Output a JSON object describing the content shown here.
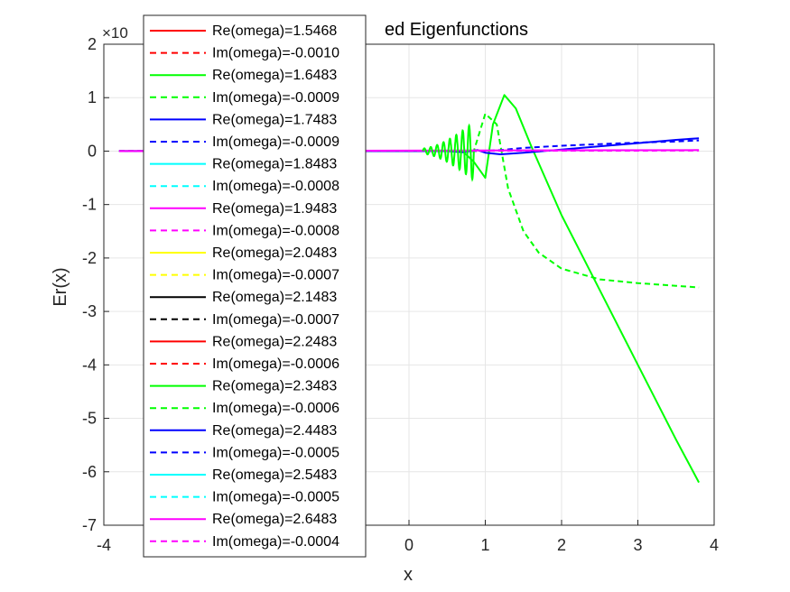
{
  "chart_data": {
    "type": "line",
    "title": "Normalized Eigenfunctions",
    "title_visible_part": "ed Eigenfunctions",
    "xlabel": "x",
    "ylabel": "Er(x)",
    "exponent_label": "×10",
    "xlim": [
      -4,
      4
    ],
    "ylim": [
      -7,
      2
    ],
    "grid": true,
    "legend_position": "top-left",
    "x_ticks": [
      "-4",
      "-3",
      "-2",
      "-1",
      "0",
      "1",
      "2",
      "3",
      "4"
    ],
    "y_ticks": [
      "2",
      "1",
      "0",
      "-1",
      "-2",
      "-3",
      "-4",
      "-5",
      "-6",
      "-7"
    ],
    "legend": [
      {
        "label": "Re(omega)=1.5468",
        "color": "#ff0000",
        "dashed": false
      },
      {
        "label": "Im(omega)=-0.0010",
        "color": "#ff0000",
        "dashed": true
      },
      {
        "label": "Re(omega)=1.6483",
        "color": "#00ff00",
        "dashed": false
      },
      {
        "label": "Im(omega)=-0.0009",
        "color": "#00ff00",
        "dashed": true
      },
      {
        "label": "Re(omega)=1.7483",
        "color": "#0000ff",
        "dashed": false
      },
      {
        "label": "Im(omega)=-0.0009",
        "color": "#0000ff",
        "dashed": true
      },
      {
        "label": "Re(omega)=1.8483",
        "color": "#00ffff",
        "dashed": false
      },
      {
        "label": "Im(omega)=-0.0008",
        "color": "#00ffff",
        "dashed": true
      },
      {
        "label": "Re(omega)=1.9483",
        "color": "#ff00ff",
        "dashed": false
      },
      {
        "label": "Im(omega)=-0.0008",
        "color": "#ff00ff",
        "dashed": true
      },
      {
        "label": "Re(omega)=2.0483",
        "color": "#ffff00",
        "dashed": false
      },
      {
        "label": "Im(omega)=-0.0007",
        "color": "#ffff00",
        "dashed": true
      },
      {
        "label": "Re(omega)=2.1483",
        "color": "#000000",
        "dashed": false
      },
      {
        "label": "Im(omega)=-0.0007",
        "color": "#000000",
        "dashed": true
      },
      {
        "label": "Re(omega)=2.2483",
        "color": "#ff0000",
        "dashed": false
      },
      {
        "label": "Im(omega)=-0.0006",
        "color": "#ff0000",
        "dashed": true
      },
      {
        "label": "Re(omega)=2.3483",
        "color": "#00ff00",
        "dashed": false
      },
      {
        "label": "Im(omega)=-0.0006",
        "color": "#00ff00",
        "dashed": true
      },
      {
        "label": "Re(omega)=2.4483",
        "color": "#0000ff",
        "dashed": false
      },
      {
        "label": "Im(omega)=-0.0005",
        "color": "#0000ff",
        "dashed": true
      },
      {
        "label": "Re(omega)=2.5483",
        "color": "#00ffff",
        "dashed": false
      },
      {
        "label": "Im(omega)=-0.0005",
        "color": "#00ffff",
        "dashed": true
      },
      {
        "label": "Re(omega)=2.6483",
        "color": "#ff00ff",
        "dashed": false
      },
      {
        "label": "Im(omega)=-0.0004",
        "color": "#ff00ff",
        "dashed": true
      }
    ],
    "series": [
      {
        "label": "Re(omega)=2.3483",
        "color": "#00ff00",
        "dashed": false,
        "x": [
          -3.8,
          -2,
          0,
          0.3,
          0.5,
          0.7,
          0.85,
          1.0,
          1.1,
          1.25,
          1.4,
          1.6,
          2.0,
          2.5,
          3.0,
          3.5,
          3.8
        ],
        "y": [
          0,
          0,
          0,
          0,
          0,
          0,
          -0.2,
          -0.5,
          0.5,
          1.05,
          0.8,
          0.1,
          -1.2,
          -2.6,
          -4.0,
          -5.4,
          -6.2
        ]
      },
      {
        "label": "Im(omega)=-0.0006",
        "color": "#00ff00",
        "dashed": true,
        "x": [
          -3.8,
          0,
          0.5,
          0.85,
          1.0,
          1.15,
          1.3,
          1.5,
          1.7,
          2.0,
          2.5,
          3.0,
          3.5,
          3.8
        ],
        "y": [
          0,
          0,
          0,
          0,
          0.7,
          0.5,
          -0.7,
          -1.5,
          -1.9,
          -2.2,
          -2.4,
          -2.47,
          -2.52,
          -2.55
        ]
      },
      {
        "label": "Re(omega)=2.4483",
        "color": "#0000ff",
        "dashed": false,
        "x": [
          -3.8,
          0,
          0.5,
          0.7,
          0.9,
          1.0,
          1.2,
          1.5,
          2.0,
          2.5,
          3.0,
          3.5,
          3.8
        ],
        "y": [
          0,
          0,
          0,
          -0.02,
          0.02,
          -0.03,
          -0.06,
          -0.03,
          0.03,
          0.09,
          0.15,
          0.21,
          0.24
        ]
      },
      {
        "label": "Im(omega)=-0.0005",
        "color": "#0000ff",
        "dashed": true,
        "x": [
          -3.8,
          0,
          0.9,
          1.2,
          1.5,
          2.0,
          2.5,
          3.0,
          3.5,
          3.8
        ],
        "y": [
          0,
          0,
          0,
          0.02,
          0.06,
          0.1,
          0.13,
          0.16,
          0.18,
          0.2
        ]
      },
      {
        "label": "Re(omega)=2.6483",
        "color": "#ff00ff",
        "dashed": false,
        "x": [
          -3.8,
          3.8
        ],
        "y": [
          0,
          0.02
        ]
      },
      {
        "label": "Im(omega)=-0.0004",
        "color": "#ff00ff",
        "dashed": true,
        "x": [
          -3.8,
          3.8
        ],
        "y": [
          0,
          0.01
        ]
      }
    ]
  }
}
